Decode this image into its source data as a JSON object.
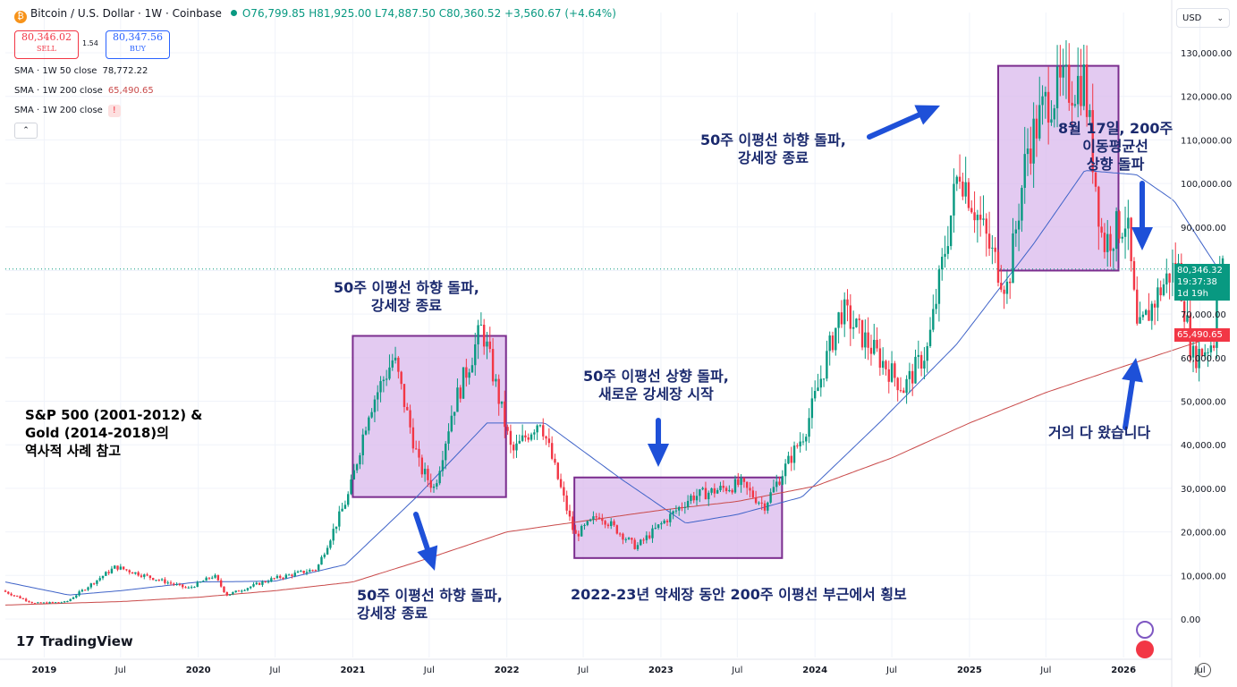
{
  "header": {
    "symbol": "Bitcoin / U.S. Dollar · 1W · Coinbase",
    "coin_glyph": "₿",
    "open": "O76,799.85",
    "high": "H81,925.00",
    "low": "L74,887.50",
    "close": "C80,360.52",
    "change": "+3,560.67 (+4.64%)"
  },
  "trade": {
    "sell_price": "80,346.02",
    "sell_label": "SELL",
    "spread": "1.54",
    "buy_price": "80,347.56",
    "buy_label": "BUY"
  },
  "indicators": [
    {
      "name": "SMA · 1W 50 close",
      "value": "78,772.22",
      "color": "#2962ff"
    },
    {
      "name": "SMA · 1W 200 close",
      "value": "65,490.65",
      "color": "#f23645"
    },
    {
      "name": "SMA · 1W 200 close",
      "value": "!",
      "color": "#f23645"
    }
  ],
  "collapse_glyph": "⌃",
  "currency": "USD",
  "currency_chevron": "⌄",
  "brand": "TradingView",
  "brand_mark": "17",
  "labels": {
    "last_price": "80,346.32",
    "countdown": "19:37:38",
    "timeframe_left": "1d 19h",
    "sma200_value": "65,490.65"
  },
  "annotations": {
    "ref_text_1": "S&P 500 (2001-2012) &",
    "ref_text_2": "Gold (2014-2018)의",
    "ref_text_3": "역사적 사례 참고",
    "box1_top_1": "50주 이평선 하향 돌파,",
    "box1_top_2": "강세장 종료",
    "box1_bottom_1": "50주 이평선 하향 돌파,",
    "box1_bottom_2": "강세장 종료",
    "bear_1": "50주 이평선 상향 돌파,",
    "bear_2": "새로운 강세장 시작",
    "sideways": "2022-23년 약세장 동안 200주 이평선 부근에서 횡보",
    "box2_1": "50주 이평선 하향 돌파,",
    "box2_2": "강세장 종료",
    "aug_1": "8월 17일, 200주",
    "aug_2": "이동평균선",
    "aug_3": "상향 돌파",
    "almost": "거의 다 왔습니다"
  },
  "chart_data": {
    "type": "candlestick",
    "interval": "1W",
    "ylim": [
      0,
      135000
    ],
    "y_ticks": [
      "0.00",
      "10,000.00",
      "20,000.00",
      "30,000.00",
      "40,000.00",
      "50,000.00",
      "60,000.00",
      "70,000.00",
      "80,000.00",
      "90,000.00",
      "100,000.00",
      "110,000.00",
      "120,000.00",
      "130,000.00"
    ],
    "x_ticks": [
      "2019",
      "Jul",
      "2020",
      "Jul",
      "2021",
      "Jul",
      "2022",
      "Jul",
      "2023",
      "Jul",
      "2024",
      "Jul",
      "2025",
      "Jul",
      "2026",
      "Jul"
    ],
    "x_tick_dates": [
      "2019-01-01",
      "2019-07-01",
      "2020-01-01",
      "2020-07-01",
      "2021-01-01",
      "2021-07-01",
      "2022-01-01",
      "2022-07-01",
      "2023-01-01",
      "2023-07-01",
      "2024-01-01",
      "2024-07-01",
      "2025-01-01",
      "2025-07-01",
      "2026-01-01",
      "2026-07-01"
    ],
    "price_path": [
      [
        "2018-10-01",
        6500
      ],
      [
        "2018-12-15",
        3600
      ],
      [
        "2019-03-01",
        3900
      ],
      [
        "2019-06-26",
        12000
      ],
      [
        "2019-09-01",
        10000
      ],
      [
        "2019-12-15",
        7000
      ],
      [
        "2020-02-15",
        10000
      ],
      [
        "2020-03-15",
        5500
      ],
      [
        "2020-07-01",
        9200
      ],
      [
        "2020-10-15",
        11500
      ],
      [
        "2020-12-31",
        29000
      ],
      [
        "2021-02-15",
        48000
      ],
      [
        "2021-04-15",
        60000
      ],
      [
        "2021-06-15",
        35000
      ],
      [
        "2021-07-20",
        30000
      ],
      [
        "2021-09-01",
        48000
      ],
      [
        "2021-11-10",
        67000
      ],
      [
        "2022-01-20",
        38000
      ],
      [
        "2022-03-28",
        46000
      ],
      [
        "2022-06-18",
        19000
      ],
      [
        "2022-08-15",
        24000
      ],
      [
        "2022-11-10",
        16500
      ],
      [
        "2023-03-20",
        28000
      ],
      [
        "2023-07-15",
        31000
      ],
      [
        "2023-09-10",
        26000
      ],
      [
        "2023-12-15",
        43000
      ],
      [
        "2024-03-10",
        71000
      ],
      [
        "2024-08-05",
        53000
      ],
      [
        "2024-10-01",
        62000
      ],
      [
        "2024-12-15",
        104000
      ],
      [
        "2025-03-01",
        84000
      ],
      [
        "2025-04-08",
        76000
      ],
      [
        "2025-05-25",
        108000
      ],
      [
        "2025-07-15",
        120000
      ],
      [
        "2025-10-06",
        124000
      ],
      [
        "2025-11-20",
        86000
      ],
      [
        "2026-01-15",
        92000
      ],
      [
        "2026-02-10",
        65000
      ],
      [
        "2026-04-01",
        75000
      ],
      [
        "2026-05-15",
        82000
      ],
      [
        "2026-06-20",
        60000
      ],
      [
        "2026-07-20",
        62000
      ],
      [
        "2026-08-10",
        64000
      ],
      [
        "2026-08-17",
        78000
      ],
      [
        "2026-08-24",
        80346
      ]
    ],
    "series": [
      {
        "name": "SMA · 1W 50 close",
        "color": "#3f63c8",
        "values": [
          [
            "2018-10-01",
            8500
          ],
          [
            "2019-03-01",
            5500
          ],
          [
            "2019-07-01",
            6500
          ],
          [
            "2020-01-01",
            8500
          ],
          [
            "2020-07-01",
            8700
          ],
          [
            "2020-12-15",
            12500
          ],
          [
            "2021-06-01",
            28000
          ],
          [
            "2021-11-15",
            45000
          ],
          [
            "2022-04-01",
            45000
          ],
          [
            "2022-10-01",
            32000
          ],
          [
            "2023-03-01",
            22000
          ],
          [
            "2023-07-01",
            24000
          ],
          [
            "2023-12-01",
            28000
          ],
          [
            "2024-06-01",
            45000
          ],
          [
            "2024-12-01",
            63000
          ],
          [
            "2025-06-01",
            86000
          ],
          [
            "2025-10-01",
            103000
          ],
          [
            "2026-02-01",
            102000
          ],
          [
            "2026-05-01",
            96000
          ],
          [
            "2026-08-24",
            78772
          ]
        ]
      },
      {
        "name": "SMA · 1W 200 close",
        "color": "#c94a4a",
        "values": [
          [
            "2018-10-01",
            3200
          ],
          [
            "2019-07-01",
            4000
          ],
          [
            "2020-01-01",
            5000
          ],
          [
            "2020-07-01",
            6500
          ],
          [
            "2021-01-01",
            8500
          ],
          [
            "2021-07-01",
            14000
          ],
          [
            "2022-01-01",
            20000
          ],
          [
            "2022-07-01",
            22500
          ],
          [
            "2023-01-01",
            25000
          ],
          [
            "2023-07-01",
            27000
          ],
          [
            "2024-01-01",
            30500
          ],
          [
            "2024-07-01",
            37000
          ],
          [
            "2025-01-01",
            45000
          ],
          [
            "2025-07-01",
            52000
          ],
          [
            "2026-01-01",
            58000
          ],
          [
            "2026-08-24",
            65490
          ]
        ]
      }
    ],
    "boxes": [
      {
        "from": "2021-01-01",
        "to": "2021-12-30",
        "low": 28000,
        "high": 65000
      },
      {
        "from": "2022-06-10",
        "to": "2023-10-15",
        "low": 14000,
        "high": 32500
      },
      {
        "from": "2025-03-10",
        "to": "2025-12-20",
        "low": 80000,
        "high": 127000
      }
    ],
    "last_price": 80346.32
  },
  "colors": {
    "up": "#089981",
    "down": "#f23645",
    "box_fill": "#d9b8ec",
    "box_stroke": "#7b2d8e",
    "arrow": "#1e50d8",
    "grid": "#f0f3fa",
    "axis_text": "#131722"
  }
}
